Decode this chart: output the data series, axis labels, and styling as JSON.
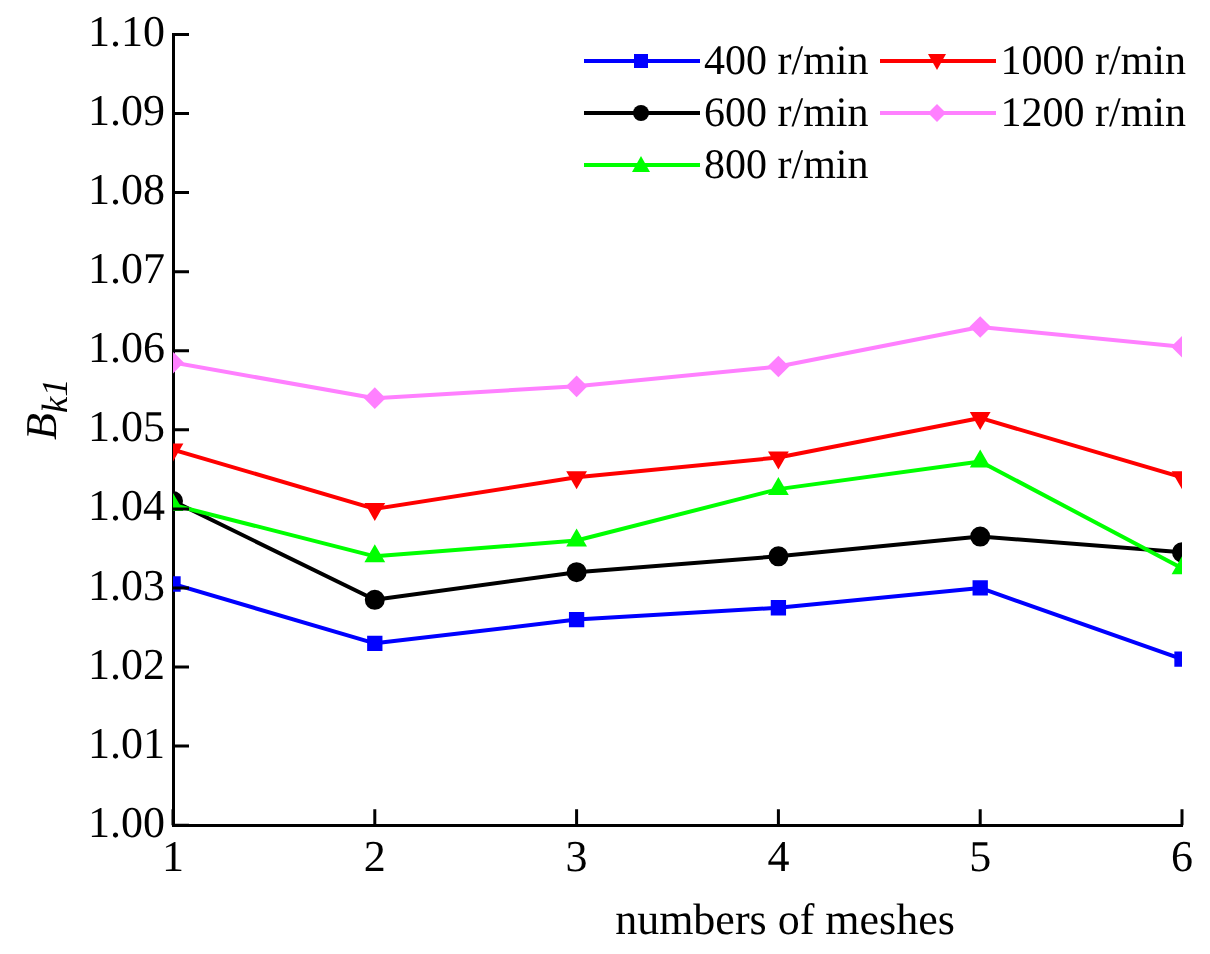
{
  "chart_data": {
    "type": "line",
    "xlabel": "numbers of meshes",
    "ylabel": "B$_{k1}$",
    "x": [
      1,
      2,
      3,
      4,
      5,
      6
    ],
    "xlim": [
      1,
      6
    ],
    "xticks": [
      1,
      2,
      3,
      4,
      5,
      6
    ],
    "ylim": [
      1.0,
      1.1
    ],
    "yticks": [
      {
        "value": 1.0,
        "label": "1.00"
      },
      {
        "value": 1.01,
        "label": "1.01"
      },
      {
        "value": 1.02,
        "label": "1.02"
      },
      {
        "value": 1.03,
        "label": "1.03"
      },
      {
        "value": 1.04,
        "label": "1.04"
      },
      {
        "value": 1.05,
        "label": "1.05"
      },
      {
        "value": 1.06,
        "label": "1.06"
      },
      {
        "value": 1.07,
        "label": "1.07"
      },
      {
        "value": 1.08,
        "label": "1.08"
      },
      {
        "value": 1.09,
        "label": "1.09"
      },
      {
        "value": 1.1,
        "label": "1.10"
      }
    ],
    "grid": false,
    "legend": "top right",
    "line_style": "solid",
    "series": [
      {
        "name": "400 r/min",
        "color": "#0000ff",
        "marker": "square",
        "values": [
          1.0305,
          1.023,
          1.026,
          1.0275,
          1.03,
          1.021
        ]
      },
      {
        "name": "600 r/min",
        "color": "#000000",
        "marker": "circle",
        "values": [
          1.041,
          1.0285,
          1.032,
          1.034,
          1.0365,
          1.0345
        ]
      },
      {
        "name": "800 r/min",
        "color": "#00ff00",
        "marker": "triangle",
        "values": [
          1.0405,
          1.034,
          1.036,
          1.0425,
          1.046,
          1.0325
        ]
      },
      {
        "name": "1000 r/min",
        "color": "#ff0000",
        "marker": "triangle-down",
        "values": [
          1.0475,
          1.04,
          1.044,
          1.0465,
          1.0515,
          1.044
        ]
      },
      {
        "name": "1200 r/min",
        "color": "#ff80ff",
        "marker": "diamond",
        "values": [
          1.0585,
          1.054,
          1.0555,
          1.058,
          1.063,
          1.0605
        ]
      }
    ]
  }
}
